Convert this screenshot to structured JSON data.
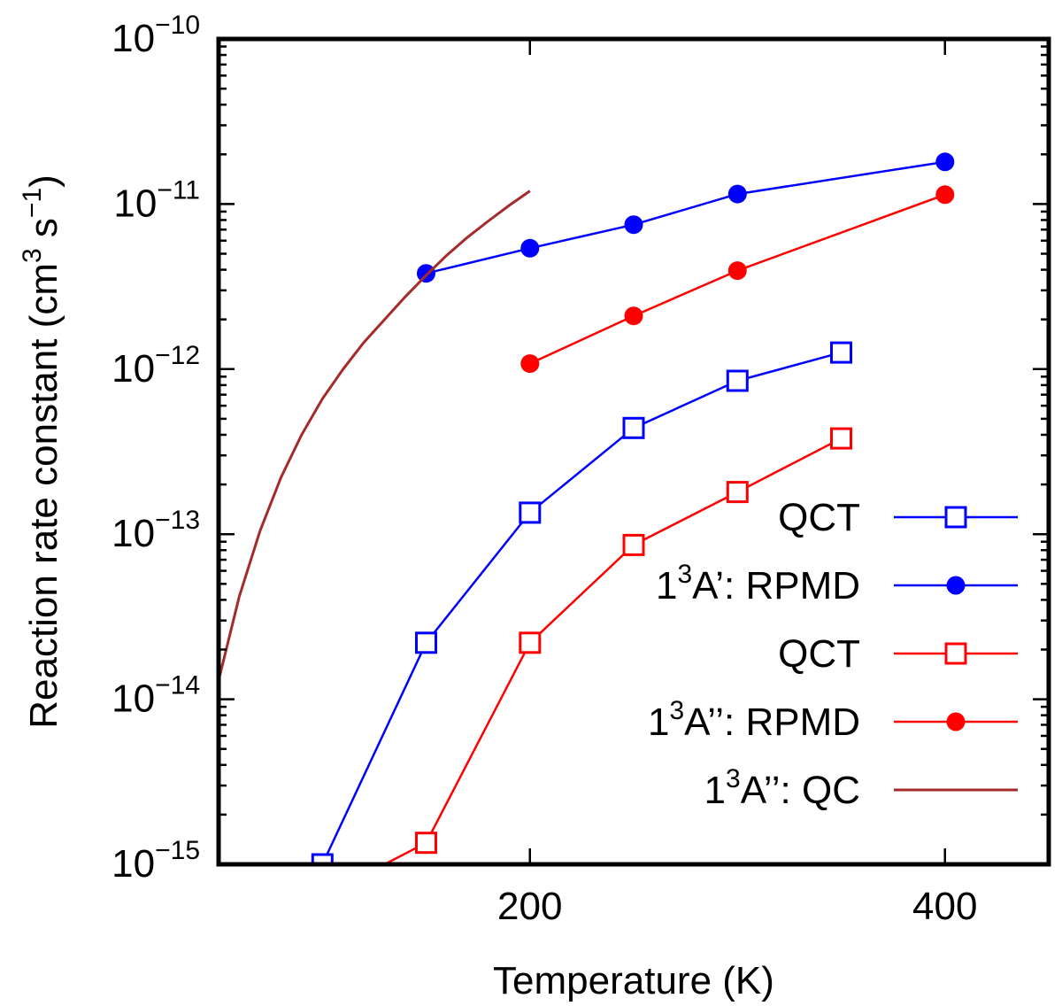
{
  "chart_data": {
    "type": "line",
    "title": "",
    "xlabel": "Temperature (K)",
    "ylabel": {
      "main": "Reaction rate constant (cm",
      "sup1": "3",
      "mid": " s",
      "sup2": "−1",
      "end": ")"
    },
    "xlim": [
      50,
      450
    ],
    "ylim_log10": [
      -15,
      -10
    ],
    "yscale": "log",
    "x_ticks": [
      {
        "value": 200,
        "label": "200"
      },
      {
        "value": 400,
        "label": "400"
      }
    ],
    "y_ticks": [
      {
        "exp": -10,
        "base": "10",
        "sup": "−10"
      },
      {
        "exp": -11,
        "base": "10",
        "sup": "−11"
      },
      {
        "exp": -12,
        "base": "10",
        "sup": "−12"
      },
      {
        "exp": -13,
        "base": "10",
        "sup": "−13"
      },
      {
        "exp": -14,
        "base": "10",
        "sup": "−14"
      },
      {
        "exp": -15,
        "base": "10",
        "sup": "−15"
      }
    ],
    "grid": false,
    "legend_position": "bottom-right",
    "series": [
      {
        "key": "qct_a1",
        "legend": {
          "main": "QCT",
          "sup": "",
          "post": ""
        },
        "color": "#0000ff",
        "marker": "open-square",
        "x": [
          100,
          150,
          200,
          250,
          300,
          350
        ],
        "y": [
          1e-15,
          2.2e-14,
          1.35e-13,
          4.4e-13,
          8.5e-13,
          1.26e-12
        ]
      },
      {
        "key": "rpmd_a1",
        "legend": {
          "main": "1",
          "sup": "3",
          "post": "A’: RPMD"
        },
        "color": "#0000ff",
        "marker": "filled-circle",
        "x": [
          150,
          200,
          250,
          300,
          400
        ],
        "y": [
          3.8e-12,
          5.4e-12,
          7.5e-12,
          1.15e-11,
          1.8e-11
        ]
      },
      {
        "key": "qct_a2",
        "legend": {
          "main": "QCT",
          "sup": "",
          "post": ""
        },
        "color": "#ff0000",
        "marker": "open-square",
        "x": [
          130,
          150,
          200,
          250,
          300,
          350
        ],
        "y": [
          1e-15,
          1.35e-15,
          2.2e-14,
          8.6e-14,
          1.8e-13,
          3.8e-13
        ]
      },
      {
        "key": "rpmd_a2",
        "legend": {
          "main": "1",
          "sup": "3",
          "post": "A’’: RPMD"
        },
        "color": "#ff0000",
        "marker": "filled-circle",
        "x": [
          200,
          250,
          300,
          400
        ],
        "y": [
          1.08e-12,
          2.1e-12,
          3.95e-12,
          1.14e-11
        ]
      },
      {
        "key": "qc_a2",
        "legend": {
          "main": "1",
          "sup": "3",
          "post": "A’’: QC"
        },
        "color": "#a52a2a",
        "marker": "none",
        "x": [
          50,
          60,
          70,
          80,
          90,
          100,
          110,
          120,
          130,
          140,
          150,
          160,
          170,
          180,
          190,
          200
        ],
        "y": [
          1.3e-14,
          4.2e-14,
          1.05e-13,
          2.2e-13,
          4e-13,
          6.6e-13,
          1e-12,
          1.45e-12,
          2e-12,
          2.75e-12,
          3.7e-12,
          4.9e-12,
          6.3e-12,
          7.9e-12,
          9.8e-12,
          1.2e-11
        ]
      }
    ]
  }
}
